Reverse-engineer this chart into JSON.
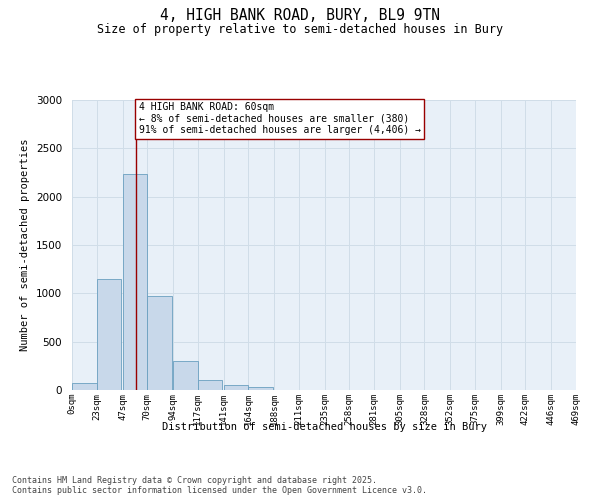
{
  "title": "4, HIGH BANK ROAD, BURY, BL9 9TN",
  "subtitle": "Size of property relative to semi-detached houses in Bury",
  "xlabel": "Distribution of semi-detached houses by size in Bury",
  "ylabel": "Number of semi-detached properties",
  "footer_line1": "Contains HM Land Registry data © Crown copyright and database right 2025.",
  "footer_line2": "Contains public sector information licensed under the Open Government Licence v3.0.",
  "annotation_title": "4 HIGH BANK ROAD: 60sqm",
  "annotation_line1": "← 8% of semi-detached houses are smaller (380)",
  "annotation_line2": "91% of semi-detached houses are larger (4,406) →",
  "property_size_sqm": 60,
  "bar_color": "#c8d8ea",
  "bar_edge_color": "#6a9fc0",
  "vline_color": "#990000",
  "annotation_box_color": "#990000",
  "annotation_bg": "#ffffff",
  "grid_color": "#d0dde8",
  "background_color": "#e8f0f8",
  "fig_background": "#ffffff",
  "categories": [
    "0sqm",
    "23sqm",
    "47sqm",
    "70sqm",
    "94sqm",
    "117sqm",
    "141sqm",
    "164sqm",
    "188sqm",
    "211sqm",
    "235sqm",
    "258sqm",
    "281sqm",
    "305sqm",
    "328sqm",
    "352sqm",
    "375sqm",
    "399sqm",
    "422sqm",
    "446sqm",
    "469sqm"
  ],
  "bin_edges": [
    0,
    23,
    47,
    70,
    94,
    117,
    141,
    164,
    188,
    211,
    235,
    258,
    281,
    305,
    328,
    352,
    375,
    399,
    422,
    446,
    469
  ],
  "values": [
    70,
    1150,
    2230,
    970,
    305,
    105,
    55,
    30,
    0,
    0,
    0,
    0,
    0,
    0,
    0,
    0,
    0,
    0,
    0,
    0
  ],
  "ylim": [
    0,
    3000
  ],
  "yticks": [
    0,
    500,
    1000,
    1500,
    2000,
    2500,
    3000
  ]
}
